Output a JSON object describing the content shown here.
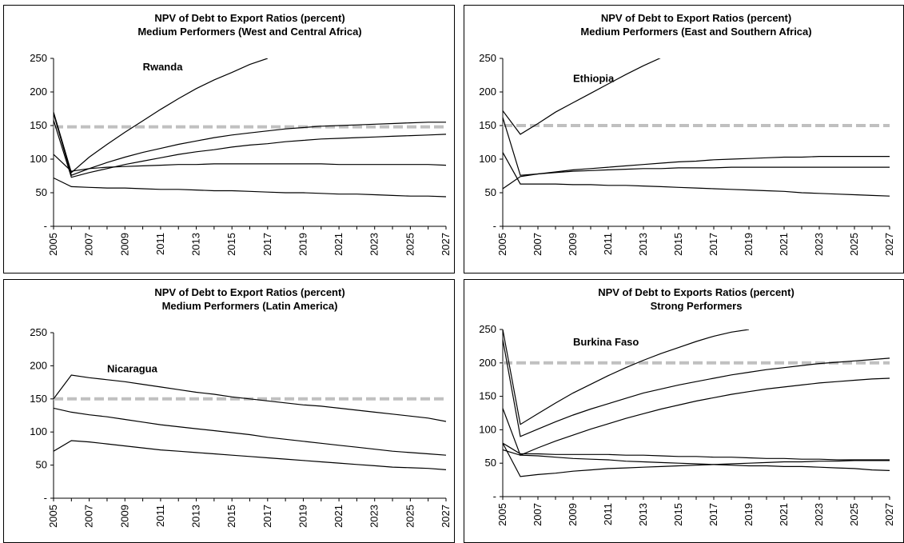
{
  "chart_data": [
    {
      "type": "line",
      "title": "NPV of Debt to Export Ratios (percent)",
      "subtitle": "Medium Performers (West and Central Africa)",
      "annotation": "Rwanda",
      "ylim": [
        0,
        250
      ],
      "yticks": [
        "-",
        "50",
        "100",
        "150",
        "200",
        "250"
      ],
      "x": [
        2005,
        2006,
        2007,
        2008,
        2009,
        2010,
        2011,
        2012,
        2013,
        2014,
        2015,
        2016,
        2017,
        2018,
        2019,
        2020,
        2021,
        2022,
        2023,
        2024,
        2025,
        2026,
        2027
      ],
      "xticks": [
        "2005",
        "2007",
        "2009",
        "2011",
        "2013",
        "2015",
        "2017",
        "2019",
        "2021",
        "2023",
        "2025",
        "2027"
      ],
      "threshold": 148,
      "series": [
        {
          "values": [
            170,
            80,
            103,
            122,
            140,
            157,
            174,
            190,
            205,
            218,
            229,
            241,
            250,
            null,
            null,
            null,
            null,
            null,
            null,
            null,
            null,
            null,
            null
          ]
        },
        {
          "values": [
            168,
            76,
            86,
            95,
            103,
            110,
            116,
            122,
            127,
            132,
            136,
            139,
            142,
            145,
            147,
            149,
            150,
            151,
            152,
            153,
            154,
            155,
            155
          ]
        },
        {
          "values": [
            158,
            73,
            80,
            86,
            92,
            97,
            102,
            107,
            111,
            114,
            118,
            121,
            123,
            126,
            128,
            130,
            131,
            132,
            133,
            134,
            135,
            136,
            137
          ]
        },
        {
          "values": [
            107,
            82,
            86,
            88,
            89,
            90,
            91,
            92,
            92,
            93,
            93,
            93,
            93,
            93,
            93,
            93,
            92,
            92,
            92,
            92,
            92,
            92,
            91
          ]
        },
        {
          "values": [
            72,
            59,
            58,
            57,
            57,
            56,
            55,
            55,
            54,
            53,
            53,
            52,
            51,
            50,
            50,
            49,
            48,
            48,
            47,
            46,
            45,
            45,
            44
          ]
        }
      ],
      "xlabel": "",
      "ylabel": "",
      "grid": false
    },
    {
      "type": "line",
      "title": "NPV of Debt to Export Ratios (percent)",
      "subtitle": "Medium Performers (East and Southern Africa)",
      "annotation": "Ethiopia",
      "ylim": [
        0,
        250
      ],
      "yticks": [
        "-",
        "50",
        "100",
        "150",
        "200",
        "250"
      ],
      "x": [
        2005,
        2006,
        2007,
        2008,
        2009,
        2010,
        2011,
        2012,
        2013,
        2014,
        2015,
        2016,
        2017,
        2018,
        2019,
        2020,
        2021,
        2022,
        2023,
        2024,
        2025,
        2026,
        2027
      ],
      "xticks": [
        "2005",
        "2007",
        "2009",
        "2011",
        "2013",
        "2015",
        "2017",
        "2019",
        "2021",
        "2023",
        "2025",
        "2027"
      ],
      "threshold": 150,
      "series": [
        {
          "values": [
            172,
            137,
            153,
            170,
            184,
            198,
            212,
            226,
            239,
            251,
            null,
            null,
            null,
            null,
            null,
            null,
            null,
            null,
            null,
            null,
            null,
            null,
            null
          ]
        },
        {
          "values": [
            56,
            74,
            78,
            81,
            84,
            86,
            88,
            90,
            92,
            94,
            96,
            97,
            99,
            100,
            101,
            102,
            103,
            103,
            104,
            104,
            104,
            104,
            104
          ]
        },
        {
          "values": [
            162,
            76,
            78,
            80,
            82,
            83,
            84,
            85,
            86,
            86,
            87,
            87,
            87,
            88,
            88,
            88,
            88,
            88,
            88,
            88,
            88,
            88,
            88
          ]
        },
        {
          "values": [
            110,
            63,
            63,
            63,
            62,
            62,
            61,
            61,
            60,
            59,
            58,
            57,
            56,
            55,
            54,
            53,
            52,
            50,
            49,
            48,
            47,
            46,
            45
          ]
        }
      ],
      "xlabel": "",
      "ylabel": "",
      "grid": false
    },
    {
      "type": "line",
      "title": "NPV of Debt to Export Ratios (percent)",
      "subtitle": "Medium Performers (Latin America)",
      "annotation": "Nicaragua",
      "ylim": [
        0,
        250
      ],
      "yticks": [
        "-",
        "50",
        "100",
        "150",
        "200",
        "250"
      ],
      "x": [
        2005,
        2006,
        2007,
        2008,
        2009,
        2010,
        2011,
        2012,
        2013,
        2014,
        2015,
        2016,
        2017,
        2018,
        2019,
        2020,
        2021,
        2022,
        2023,
        2024,
        2025,
        2026,
        2027
      ],
      "xticks": [
        "2005",
        "2007",
        "2009",
        "2011",
        "2013",
        "2015",
        "2017",
        "2019",
        "2021",
        "2023",
        "2025",
        "2027"
      ],
      "threshold": 150,
      "series": [
        {
          "values": [
            150,
            186,
            182,
            179,
            176,
            172,
            168,
            164,
            160,
            157,
            153,
            150,
            147,
            144,
            141,
            139,
            136,
            133,
            130,
            127,
            124,
            121,
            116
          ]
        },
        {
          "values": [
            136,
            130,
            126,
            123,
            119,
            115,
            111,
            108,
            105,
            102,
            99,
            96,
            92,
            89,
            86,
            83,
            80,
            77,
            74,
            71,
            69,
            67,
            65
          ]
        },
        {
          "values": [
            71,
            87,
            85,
            82,
            79,
            76,
            73,
            71,
            69,
            67,
            65,
            63,
            61,
            59,
            57,
            55,
            53,
            51,
            49,
            47,
            46,
            45,
            43
          ]
        }
      ],
      "xlabel": "",
      "ylabel": "",
      "grid": false
    },
    {
      "type": "line",
      "title": "NPV of Debt to Exports Ratios (percent)",
      "subtitle": "Strong Performers",
      "annotation": "Burkina Faso",
      "ylim": [
        0,
        250
      ],
      "yticks": [
        "-",
        "50",
        "100",
        "150",
        "200",
        "250"
      ],
      "x": [
        2005,
        2006,
        2007,
        2008,
        2009,
        2010,
        2011,
        2012,
        2013,
        2014,
        2015,
        2016,
        2017,
        2018,
        2019,
        2020,
        2021,
        2022,
        2023,
        2024,
        2025,
        2026,
        2027
      ],
      "xticks": [
        "2005",
        "2007",
        "2009",
        "2011",
        "2013",
        "2015",
        "2017",
        "2019",
        "2021",
        "2023",
        "2025",
        "2027"
      ],
      "threshold": 200,
      "series": [
        {
          "values": [
            250,
            108,
            124,
            140,
            155,
            168,
            181,
            193,
            204,
            214,
            223,
            232,
            240,
            246,
            250,
            null,
            null,
            null,
            null,
            null,
            null,
            null,
            null
          ]
        },
        {
          "values": [
            235,
            90,
            101,
            112,
            122,
            131,
            139,
            147,
            155,
            161,
            167,
            172,
            177,
            182,
            186,
            190,
            193,
            196,
            199,
            201,
            203,
            205,
            207
          ]
        },
        {
          "values": [
            132,
            62,
            73,
            83,
            92,
            101,
            109,
            117,
            124,
            131,
            137,
            143,
            148,
            153,
            157,
            161,
            164,
            167,
            170,
            172,
            174,
            176,
            177
          ]
        },
        {
          "values": [
            80,
            64,
            64,
            63,
            63,
            63,
            63,
            62,
            62,
            61,
            60,
            60,
            59,
            59,
            58,
            57,
            57,
            56,
            56,
            55,
            55,
            55,
            55
          ]
        },
        {
          "values": [
            70,
            62,
            61,
            59,
            57,
            56,
            55,
            53,
            52,
            51,
            50,
            49,
            48,
            47,
            46,
            46,
            45,
            45,
            44,
            43,
            42,
            40,
            39
          ]
        },
        {
          "values": [
            80,
            30,
            33,
            35,
            38,
            40,
            42,
            43,
            44,
            45,
            46,
            47,
            48,
            49,
            50,
            51,
            52,
            52,
            53,
            53,
            54,
            54,
            54
          ]
        }
      ],
      "xlabel": "",
      "ylabel": "",
      "grid": false
    }
  ]
}
